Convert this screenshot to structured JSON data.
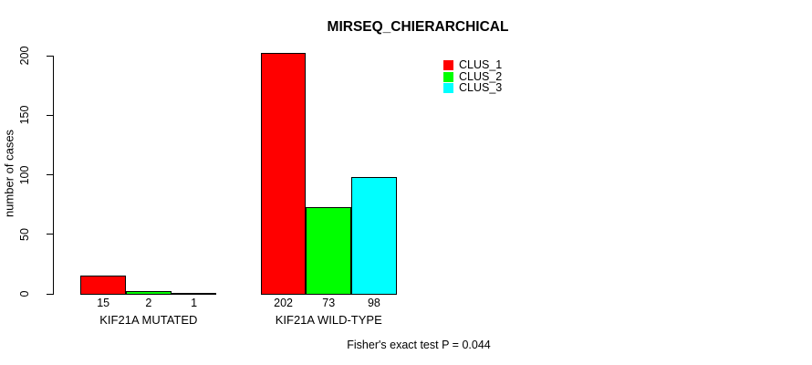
{
  "chart_data": {
    "type": "bar",
    "title": "MIRSEQ_CHIERARCHICAL",
    "ylabel": "number of cases",
    "xlabel": "",
    "categories": [
      "KIF21A MUTATED",
      "KIF21A WILD-TYPE"
    ],
    "series": [
      {
        "name": "CLUS_1",
        "color": "#FF0000",
        "values": [
          15,
          202
        ]
      },
      {
        "name": "CLUS_2",
        "color": "#00FF00",
        "values": [
          2,
          73
        ]
      },
      {
        "name": "CLUS_3",
        "color": "#00FFFF",
        "values": [
          1,
          98
        ]
      }
    ],
    "bar_value_labels": [
      [
        "15",
        "2",
        "1"
      ],
      [
        "202",
        "73",
        "98"
      ]
    ],
    "ylim": [
      0,
      200
    ],
    "yticks": [
      0,
      50,
      100,
      150,
      200
    ],
    "grid": false,
    "legend": [
      "CLUS_1",
      "CLUS_2",
      "CLUS_3"
    ],
    "legend_position": "top-right",
    "annotation": "Fisher's exact test P = 0.044"
  },
  "colors": {
    "axis": "#000000",
    "bar_border": "#000000",
    "background": "#FFFFFF"
  }
}
